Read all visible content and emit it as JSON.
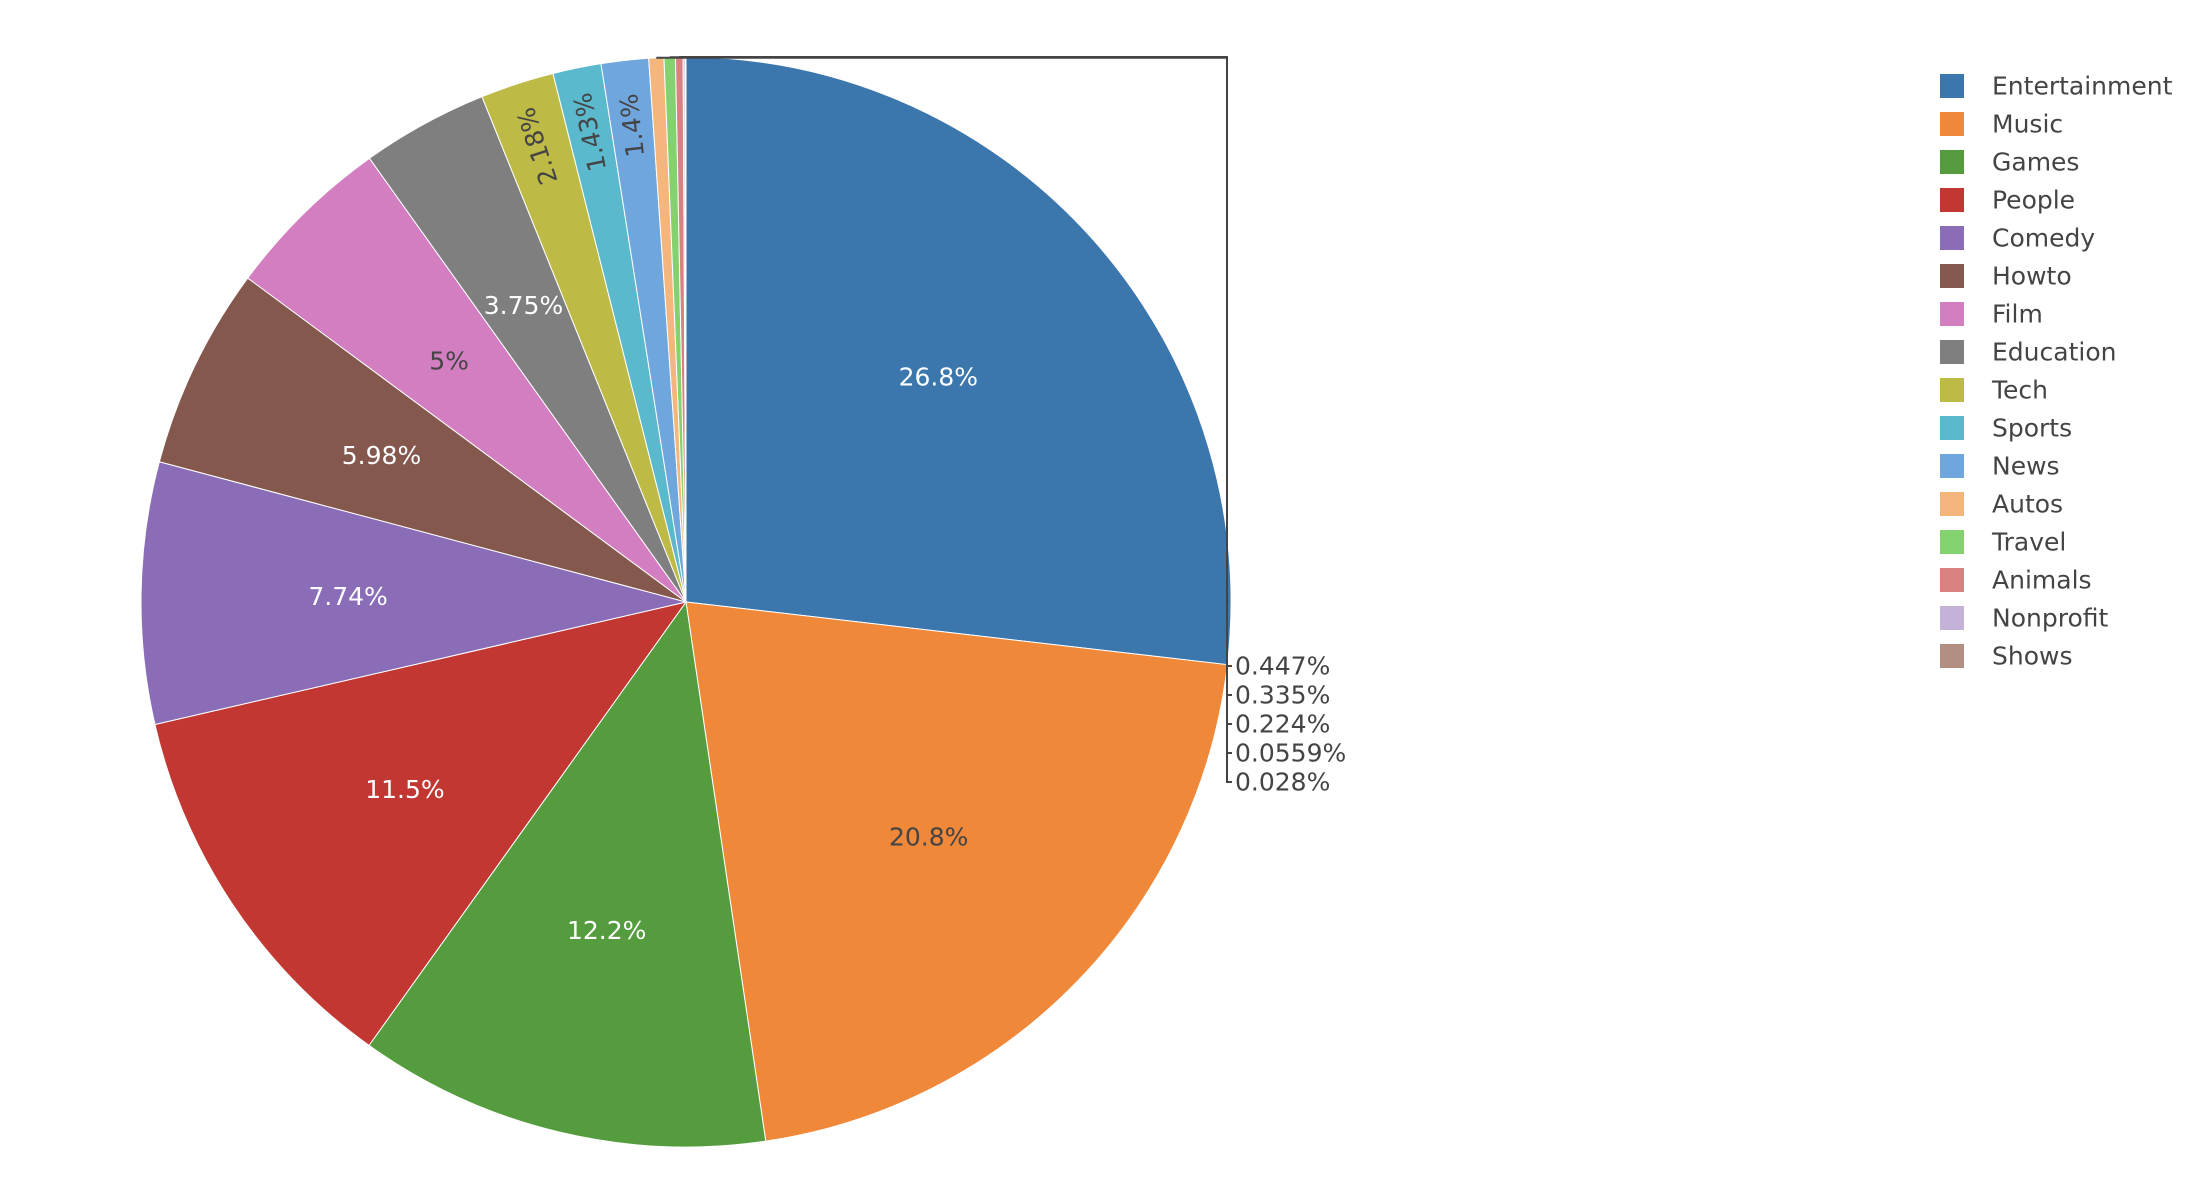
{
  "chart_data": {
    "type": "pie",
    "title": "",
    "legend_position": "right",
    "direction": "clockwise",
    "start": "top",
    "sort": "descending",
    "slices": [
      {
        "label": "Entertainment",
        "value": 26.8,
        "text": "26.8%",
        "color": "#3b76ad",
        "text_color": "#ffffff",
        "position": "inside"
      },
      {
        "label": "Music",
        "value": 20.8,
        "text": "20.8%",
        "color": "#ef8838",
        "text_color": "#444444",
        "position": "inside"
      },
      {
        "label": "Games",
        "value": 12.2,
        "text": "12.2%",
        "color": "#559c3f",
        "text_color": "#ffffff",
        "position": "inside"
      },
      {
        "label": "People",
        "value": 11.5,
        "text": "11.5%",
        "color": "#c23731",
        "text_color": "#ffffff",
        "position": "inside"
      },
      {
        "label": "Comedy",
        "value": 7.74,
        "text": "7.74%",
        "color": "#8b6db7",
        "text_color": "#ffffff",
        "position": "inside"
      },
      {
        "label": "Howto",
        "value": 5.98,
        "text": "5.98%",
        "color": "#85584e",
        "text_color": "#ffffff",
        "position": "inside"
      },
      {
        "label": "Film",
        "value": 5,
        "text": "5%",
        "color": "#d27ec1",
        "text_color": "#444444",
        "position": "inside"
      },
      {
        "label": "Education",
        "value": 3.75,
        "text": "3.75%",
        "color": "#7f7f7f",
        "text_color": "#ffffff",
        "position": "inside"
      },
      {
        "label": "Tech",
        "value": 2.18,
        "text": "2.18%",
        "color": "#bdbb46",
        "text_color": "#444444",
        "position": "inside-rotated"
      },
      {
        "label": "Sports",
        "value": 1.43,
        "text": "1.43%",
        "color": "#5ab9cc",
        "text_color": "#444444",
        "position": "inside-rotated"
      },
      {
        "label": "News",
        "value": 1.4,
        "text": "1.4%",
        "color": "#6fa6dd",
        "text_color": "#444444",
        "position": "inside-rotated"
      },
      {
        "label": "Autos",
        "value": 0.447,
        "text": "0.447%",
        "color": "#f4b67c",
        "text_color": "#444444",
        "position": "outside"
      },
      {
        "label": "Travel",
        "value": 0.335,
        "text": "0.335%",
        "color": "#83d16f",
        "text_color": "#444444",
        "position": "outside"
      },
      {
        "label": "Animals",
        "value": 0.224,
        "text": "0.224%",
        "color": "#d98181",
        "text_color": "#444444",
        "position": "outside"
      },
      {
        "label": "Nonprofit",
        "value": 0.0559,
        "text": "0.0559%",
        "color": "#c4b2d8",
        "text_color": "#444444",
        "position": "outside"
      },
      {
        "label": "Shows",
        "value": 0.028,
        "text": "0.028%",
        "color": "#b28f82",
        "text_color": "#444444",
        "position": "outside"
      }
    ]
  }
}
